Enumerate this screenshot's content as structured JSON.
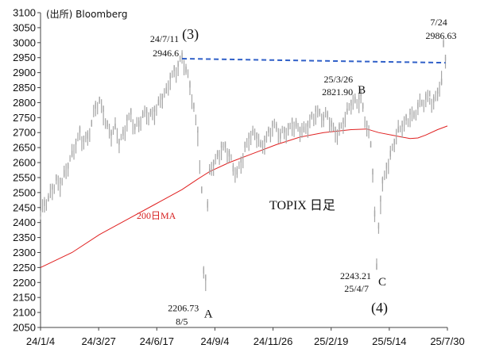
{
  "source_label": "(出所) Bloomberg",
  "chart_data": {
    "type": "line",
    "title": "TOPIX 日足",
    "xlabel": "",
    "ylabel": "",
    "ylim": [
      2050,
      3100
    ],
    "yticks": [
      3100,
      3050,
      3000,
      2950,
      2900,
      2850,
      2800,
      2750,
      2700,
      2650,
      2600,
      2550,
      2500,
      2450,
      2400,
      2350,
      2300,
      2250,
      2200,
      2150,
      2100,
      2050
    ],
    "x_tick_labels": [
      "24/1/4",
      "24/3/27",
      "24/6/17",
      "24/9/4",
      "24/11/26",
      "25/2/19",
      "25/5/14",
      "25/7/30"
    ],
    "grid": false,
    "series": [
      {
        "name": "",
        "kind": "daily-range-bars",
        "color": "#a6a6a6",
        "points": [
          [
            0,
            2420
          ],
          [
            2,
            2455
          ],
          [
            4,
            2470
          ],
          [
            6,
            2510
          ],
          [
            8,
            2540
          ],
          [
            10,
            2530
          ],
          [
            12,
            2555
          ],
          [
            14,
            2580
          ],
          [
            16,
            2620
          ],
          [
            18,
            2660
          ],
          [
            20,
            2700
          ],
          [
            22,
            2670
          ],
          [
            24,
            2680
          ],
          [
            26,
            2720
          ],
          [
            28,
            2780
          ],
          [
            30,
            2800
          ],
          [
            32,
            2770
          ],
          [
            34,
            2720
          ],
          [
            36,
            2690
          ],
          [
            38,
            2710
          ],
          [
            40,
            2660
          ],
          [
            42,
            2690
          ],
          [
            44,
            2740
          ],
          [
            46,
            2760
          ],
          [
            48,
            2710
          ],
          [
            50,
            2720
          ],
          [
            52,
            2750
          ],
          [
            54,
            2765
          ],
          [
            56,
            2760
          ],
          [
            58,
            2770
          ],
          [
            60,
            2790
          ],
          [
            62,
            2810
          ],
          [
            64,
            2830
          ],
          [
            66,
            2880
          ],
          [
            68,
            2905
          ],
          [
            70,
            2920
          ],
          [
            72,
            2946.6
          ],
          [
            74,
            2900
          ],
          [
            76,
            2850
          ],
          [
            78,
            2780
          ],
          [
            80,
            2700
          ],
          [
            82,
            2500
          ],
          [
            83,
            2230
          ],
          [
            84,
            2206.73
          ],
          [
            85,
            2450
          ],
          [
            86,
            2560
          ],
          [
            88,
            2590
          ],
          [
            90,
            2620
          ],
          [
            92,
            2650
          ],
          [
            94,
            2650
          ],
          [
            96,
            2620
          ],
          [
            98,
            2570
          ],
          [
            100,
            2560
          ],
          [
            102,
            2600
          ],
          [
            104,
            2650
          ],
          [
            106,
            2680
          ],
          [
            108,
            2690
          ],
          [
            110,
            2680
          ],
          [
            112,
            2650
          ],
          [
            114,
            2670
          ],
          [
            116,
            2700
          ],
          [
            118,
            2720
          ],
          [
            120,
            2710
          ],
          [
            122,
            2680
          ],
          [
            124,
            2700
          ],
          [
            126,
            2710
          ],
          [
            128,
            2730
          ],
          [
            130,
            2720
          ],
          [
            132,
            2700
          ],
          [
            134,
            2700
          ],
          [
            136,
            2720
          ],
          [
            138,
            2750
          ],
          [
            140,
            2770
          ],
          [
            142,
            2760
          ],
          [
            144,
            2740
          ],
          [
            146,
            2750
          ],
          [
            148,
            2720
          ],
          [
            150,
            2700
          ],
          [
            152,
            2710
          ],
          [
            154,
            2730
          ],
          [
            156,
            2760
          ],
          [
            158,
            2790
          ],
          [
            160,
            2800
          ],
          [
            162,
            2810
          ],
          [
            163,
            2821.9
          ],
          [
            164,
            2780
          ],
          [
            166,
            2720
          ],
          [
            168,
            2650
          ],
          [
            169,
            2560
          ],
          [
            170,
            2420
          ],
          [
            171,
            2243.21
          ],
          [
            172,
            2380
          ],
          [
            173,
            2470
          ],
          [
            174,
            2530
          ],
          [
            176,
            2580
          ],
          [
            178,
            2620
          ],
          [
            180,
            2660
          ],
          [
            182,
            2700
          ],
          [
            184,
            2720
          ],
          [
            186,
            2740
          ],
          [
            188,
            2760
          ],
          [
            190,
            2750
          ],
          [
            192,
            2780
          ],
          [
            194,
            2790
          ],
          [
            196,
            2810
          ],
          [
            198,
            2820
          ],
          [
            200,
            2800
          ],
          [
            202,
            2830
          ],
          [
            204,
            2860
          ],
          [
            205,
            2986.63
          ],
          [
            206,
            2940
          ]
        ]
      },
      {
        "name": "200日MA",
        "kind": "line",
        "color": "#e02020",
        "points": [
          [
            0,
            2250
          ],
          [
            16,
            2300
          ],
          [
            30,
            2360
          ],
          [
            44,
            2410
          ],
          [
            58,
            2460
          ],
          [
            72,
            2510
          ],
          [
            80,
            2545
          ],
          [
            86,
            2570
          ],
          [
            96,
            2600
          ],
          [
            108,
            2630
          ],
          [
            120,
            2660
          ],
          [
            132,
            2685
          ],
          [
            144,
            2700
          ],
          [
            158,
            2710
          ],
          [
            166,
            2712
          ],
          [
            172,
            2700
          ],
          [
            180,
            2690
          ],
          [
            188,
            2680
          ],
          [
            192,
            2682
          ],
          [
            196,
            2692
          ],
          [
            202,
            2710
          ],
          [
            207,
            2722
          ]
        ]
      }
    ],
    "reference_line": {
      "kind": "dashed",
      "color": "#3060c8",
      "from": [
        72,
        2946.6
      ],
      "to": [
        206,
        2933
      ]
    },
    "annotations": [
      {
        "id": "peak-3-date",
        "text": "24/7/11",
        "x": 72,
        "y": 2946.6
      },
      {
        "id": "peak-3-value",
        "text": "2946.6",
        "x": 72,
        "y": 2946.6
      },
      {
        "id": "wave-3",
        "text": "(3)",
        "x": 72,
        "y": 2946.6
      },
      {
        "id": "low-a-value",
        "text": "2206.73",
        "x": 84,
        "y": 2206.73
      },
      {
        "id": "low-a-date",
        "text": "8/5",
        "x": 84,
        "y": 2206.73
      },
      {
        "id": "point-a",
        "text": "A",
        "x": 84,
        "y": 2206.73
      },
      {
        "id": "peak-b-date",
        "text": "25/3/26",
        "x": 163,
        "y": 2821.9
      },
      {
        "id": "peak-b-value",
        "text": "2821.90",
        "x": 163,
        "y": 2821.9
      },
      {
        "id": "point-b",
        "text": "B",
        "x": 163,
        "y": 2821.9
      },
      {
        "id": "low-c-value",
        "text": "2243.21",
        "x": 171,
        "y": 2243.21
      },
      {
        "id": "low-c-date",
        "text": "25/4/7",
        "x": 171,
        "y": 2243.21
      },
      {
        "id": "point-c",
        "text": "C",
        "x": 171,
        "y": 2243.21
      },
      {
        "id": "wave-4",
        "text": "(4)",
        "x": 171,
        "y": 2243.21
      },
      {
        "id": "last-date",
        "text": "7/24",
        "x": 205,
        "y": 2986.63
      },
      {
        "id": "last-value",
        "text": "2986.63",
        "x": 205,
        "y": 2986.63
      }
    ]
  }
}
